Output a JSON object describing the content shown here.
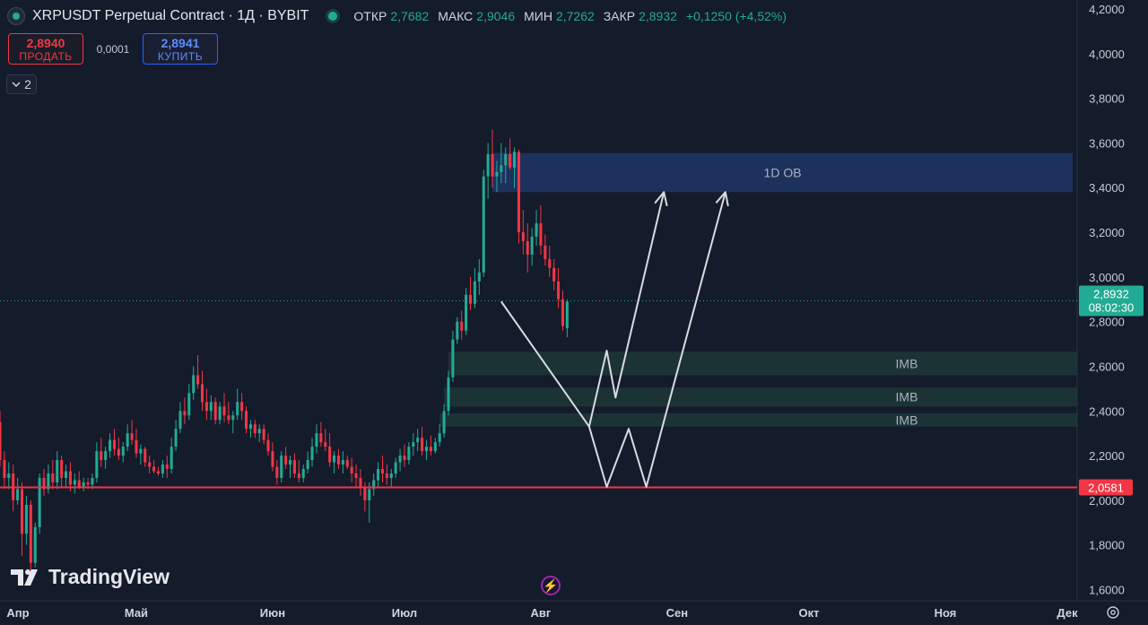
{
  "header": {
    "symbol": "XRPUSDT Perpetual Contract · 1Д · BYBIT",
    "ohlc": [
      {
        "key": "ОТКР",
        "value": "2,7682"
      },
      {
        "key": "МАКС",
        "value": "2,9046"
      },
      {
        "key": "МИН",
        "value": "2,7262"
      },
      {
        "key": "ЗАКР",
        "value": "2,8932"
      }
    ],
    "change": "+0,1250 (+4,52%)"
  },
  "trade": {
    "sell_price": "2,8940",
    "sell_label": "ПРОДАТЬ",
    "spread": "0,0001",
    "buy_price": "2,8941",
    "buy_label": "КУПИТЬ"
  },
  "indicators_toggle": "2",
  "branding": {
    "logo_text": "TradingView"
  },
  "colors": {
    "up": "#22ab94",
    "down": "#f23645",
    "background": "#141b2b",
    "ob_zone": "#1e3566",
    "imb_zone": "#1e3a3a",
    "support_line": "#f23645",
    "price_tag": "#22ab94",
    "drawing": "#d9dbe0"
  },
  "chart_data": {
    "type": "candlestick",
    "xlim": [
      "2025-03-31",
      "2025-12-01"
    ],
    "ylim": [
      1.55,
      4.24
    ],
    "y_ticks": [
      "4,2000",
      "4,0000",
      "3,8000",
      "3,6000",
      "3,4000",
      "3,2000",
      "3,0000",
      "2,8000",
      "2,6000",
      "2,4000",
      "2,2000",
      "2,0000",
      "1,8000",
      "1,6000"
    ],
    "x_ticks": [
      {
        "date": "2025-04-01",
        "label": "Апр"
      },
      {
        "date": "2025-05-01",
        "label": "Май"
      },
      {
        "date": "2025-06-01",
        "label": "Июн"
      },
      {
        "date": "2025-07-01",
        "label": "Июл"
      },
      {
        "date": "2025-08-01",
        "label": "Авг"
      },
      {
        "date": "2025-09-01",
        "label": "Сен"
      },
      {
        "date": "2025-10-01",
        "label": "Окт"
      },
      {
        "date": "2025-11-01",
        "label": "Ноя"
      },
      {
        "date": "2025-12-01",
        "label": "Дек"
      }
    ],
    "last_price": {
      "value": 2.8932,
      "label": "2,8932",
      "countdown": "08:02:30"
    },
    "support": {
      "value": 2.0581,
      "label": "2,0581"
    },
    "zones": [
      {
        "label": "1D OB",
        "kind": "order-block",
        "from": "2025-07-21",
        "to": "2025-11-30",
        "top": 3.555,
        "bottom": 3.38
      },
      {
        "label": "IMB",
        "kind": "imbalance",
        "from": "2025-07-11",
        "to": "2025-12-01",
        "top": 2.665,
        "bottom": 2.56
      },
      {
        "label": "IMB",
        "kind": "imbalance",
        "from": "2025-07-10",
        "to": "2025-12-01",
        "top": 2.505,
        "bottom": 2.42
      },
      {
        "label": "IMB",
        "kind": "imbalance",
        "from": "2025-07-09",
        "to": "2025-12-01",
        "top": 2.39,
        "bottom": 2.33
      }
    ],
    "projections": [
      {
        "name": "path-a",
        "points": [
          [
            "2025-07-23",
            2.89
          ],
          [
            "2025-08-12",
            2.33
          ],
          [
            "2025-08-16",
            2.67
          ],
          [
            "2025-08-18",
            2.46
          ],
          [
            "2025-08-29",
            3.38
          ]
        ]
      },
      {
        "name": "path-b",
        "points": [
          [
            "2025-08-12",
            2.33
          ],
          [
            "2025-08-16",
            2.06
          ],
          [
            "2025-08-21",
            2.32
          ],
          [
            "2025-08-25",
            2.06
          ],
          [
            "2025-09-12",
            3.38
          ]
        ]
      }
    ],
    "candles_start": "2025-03-31",
    "candles": [
      [
        2.35,
        2.4,
        2.15,
        2.18
      ],
      [
        2.18,
        2.22,
        2.05,
        2.1
      ],
      [
        2.1,
        2.17,
        2.05,
        2.12
      ],
      [
        2.12,
        2.16,
        1.95,
        2.0
      ],
      [
        2.0,
        2.1,
        1.98,
        2.05
      ],
      [
        2.05,
        2.08,
        1.75,
        1.85
      ],
      [
        1.85,
        2.02,
        1.8,
        1.98
      ],
      [
        1.98,
        2.0,
        1.66,
        1.72
      ],
      [
        1.72,
        1.9,
        1.7,
        1.88
      ],
      [
        1.88,
        2.12,
        1.85,
        2.1
      ],
      [
        2.1,
        2.14,
        2.02,
        2.05
      ],
      [
        2.05,
        2.16,
        2.03,
        2.12
      ],
      [
        2.12,
        2.18,
        2.05,
        2.08
      ],
      [
        2.08,
        2.22,
        2.05,
        2.18
      ],
      [
        2.18,
        2.2,
        2.06,
        2.1
      ],
      [
        2.1,
        2.16,
        2.06,
        2.13
      ],
      [
        2.13,
        2.17,
        2.04,
        2.07
      ],
      [
        2.07,
        2.12,
        2.03,
        2.09
      ],
      [
        2.09,
        2.13,
        2.05,
        2.06
      ],
      [
        2.06,
        2.1,
        2.04,
        2.08
      ],
      [
        2.08,
        2.1,
        2.05,
        2.07
      ],
      [
        2.07,
        2.12,
        2.05,
        2.1
      ],
      [
        2.1,
        2.26,
        2.08,
        2.22
      ],
      [
        2.22,
        2.28,
        2.15,
        2.18
      ],
      [
        2.18,
        2.24,
        2.14,
        2.22
      ],
      [
        2.22,
        2.3,
        2.19,
        2.27
      ],
      [
        2.27,
        2.32,
        2.2,
        2.23
      ],
      [
        2.23,
        2.28,
        2.18,
        2.2
      ],
      [
        2.2,
        2.26,
        2.17,
        2.24
      ],
      [
        2.24,
        2.34,
        2.22,
        2.3
      ],
      [
        2.3,
        2.36,
        2.25,
        2.27
      ],
      [
        2.27,
        2.32,
        2.19,
        2.21
      ],
      [
        2.21,
        2.25,
        2.16,
        2.23
      ],
      [
        2.23,
        2.24,
        2.15,
        2.17
      ],
      [
        2.17,
        2.2,
        2.12,
        2.15
      ],
      [
        2.15,
        2.18,
        2.12,
        2.13
      ],
      [
        2.13,
        2.15,
        2.11,
        2.12
      ],
      [
        2.12,
        2.18,
        2.1,
        2.16
      ],
      [
        2.16,
        2.2,
        2.1,
        2.14
      ],
      [
        2.14,
        2.28,
        2.12,
        2.24
      ],
      [
        2.24,
        2.36,
        2.22,
        2.32
      ],
      [
        2.32,
        2.44,
        2.3,
        2.4
      ],
      [
        2.4,
        2.46,
        2.34,
        2.38
      ],
      [
        2.38,
        2.52,
        2.36,
        2.48
      ],
      [
        2.48,
        2.6,
        2.45,
        2.56
      ],
      [
        2.56,
        2.65,
        2.5,
        2.52
      ],
      [
        2.52,
        2.58,
        2.4,
        2.44
      ],
      [
        2.44,
        2.5,
        2.36,
        2.4
      ],
      [
        2.4,
        2.47,
        2.36,
        2.44
      ],
      [
        2.44,
        2.46,
        2.34,
        2.36
      ],
      [
        2.36,
        2.44,
        2.34,
        2.42
      ],
      [
        2.42,
        2.48,
        2.35,
        2.38
      ],
      [
        2.38,
        2.44,
        2.34,
        2.36
      ],
      [
        2.36,
        2.4,
        2.3,
        2.38
      ],
      [
        2.38,
        2.5,
        2.36,
        2.44
      ],
      [
        2.44,
        2.48,
        2.36,
        2.4
      ],
      [
        2.4,
        2.42,
        2.3,
        2.32
      ],
      [
        2.32,
        2.36,
        2.28,
        2.34
      ],
      [
        2.34,
        2.36,
        2.28,
        2.3
      ],
      [
        2.3,
        2.34,
        2.26,
        2.32
      ],
      [
        2.32,
        2.34,
        2.25,
        2.27
      ],
      [
        2.27,
        2.3,
        2.2,
        2.22
      ],
      [
        2.22,
        2.26,
        2.13,
        2.15
      ],
      [
        2.15,
        2.18,
        2.07,
        2.1
      ],
      [
        2.1,
        2.22,
        2.08,
        2.2
      ],
      [
        2.2,
        2.24,
        2.14,
        2.16
      ],
      [
        2.16,
        2.2,
        2.1,
        2.18
      ],
      [
        2.18,
        2.21,
        2.1,
        2.12
      ],
      [
        2.12,
        2.18,
        2.08,
        2.1
      ],
      [
        2.1,
        2.16,
        2.08,
        2.14
      ],
      [
        2.14,
        2.22,
        2.12,
        2.18
      ],
      [
        2.18,
        2.28,
        2.15,
        2.24
      ],
      [
        2.24,
        2.34,
        2.21,
        2.3
      ],
      [
        2.3,
        2.35,
        2.24,
        2.26
      ],
      [
        2.26,
        2.32,
        2.22,
        2.24
      ],
      [
        2.24,
        2.3,
        2.15,
        2.17
      ],
      [
        2.17,
        2.22,
        2.12,
        2.2
      ],
      [
        2.2,
        2.23,
        2.14,
        2.16
      ],
      [
        2.16,
        2.22,
        2.12,
        2.18
      ],
      [
        2.18,
        2.2,
        2.14,
        2.15
      ],
      [
        2.15,
        2.19,
        2.08,
        2.12
      ],
      [
        2.12,
        2.16,
        2.06,
        2.1
      ],
      [
        2.1,
        2.14,
        2.02,
        2.06
      ],
      [
        2.06,
        2.08,
        1.95,
        2.0
      ],
      [
        2.0,
        2.08,
        1.9,
        2.05
      ],
      [
        2.05,
        2.12,
        2.02,
        2.09
      ],
      [
        2.09,
        2.17,
        2.06,
        2.14
      ],
      [
        2.14,
        2.2,
        2.08,
        2.12
      ],
      [
        2.12,
        2.16,
        2.07,
        2.1
      ],
      [
        2.1,
        2.14,
        2.06,
        2.12
      ],
      [
        2.12,
        2.19,
        2.1,
        2.17
      ],
      [
        2.17,
        2.23,
        2.13,
        2.2
      ],
      [
        2.2,
        2.25,
        2.15,
        2.18
      ],
      [
        2.18,
        2.26,
        2.16,
        2.24
      ],
      [
        2.24,
        2.3,
        2.2,
        2.26
      ],
      [
        2.26,
        2.32,
        2.22,
        2.28
      ],
      [
        2.28,
        2.33,
        2.2,
        2.22
      ],
      [
        2.22,
        2.27,
        2.18,
        2.24
      ],
      [
        2.24,
        2.29,
        2.2,
        2.22
      ],
      [
        2.22,
        2.28,
        2.21,
        2.26
      ],
      [
        2.26,
        2.34,
        2.24,
        2.3
      ],
      [
        2.3,
        2.43,
        2.28,
        2.4
      ],
      [
        2.4,
        2.58,
        2.38,
        2.55
      ],
      [
        2.55,
        2.76,
        2.53,
        2.72
      ],
      [
        2.72,
        2.82,
        2.7,
        2.8
      ],
      [
        2.8,
        2.85,
        2.72,
        2.76
      ],
      [
        2.76,
        2.95,
        2.74,
        2.92
      ],
      [
        2.92,
        3.0,
        2.85,
        2.88
      ],
      [
        2.88,
        3.04,
        2.86,
        2.98
      ],
      [
        2.98,
        3.08,
        2.92,
        3.02
      ],
      [
        3.02,
        3.48,
        3.0,
        3.45
      ],
      [
        3.45,
        3.6,
        3.35,
        3.55
      ],
      [
        3.55,
        3.66,
        3.4,
        3.45
      ],
      [
        3.45,
        3.52,
        3.38,
        3.47
      ],
      [
        3.47,
        3.6,
        3.42,
        3.5
      ],
      [
        3.5,
        3.58,
        3.42,
        3.55
      ],
      [
        3.55,
        3.62,
        3.48,
        3.49
      ],
      [
        3.49,
        3.58,
        3.4,
        3.56
      ],
      [
        3.56,
        3.57,
        3.15,
        3.2
      ],
      [
        3.2,
        3.3,
        3.1,
        3.16
      ],
      [
        3.16,
        3.24,
        3.02,
        3.1
      ],
      [
        3.1,
        3.22,
        3.05,
        3.18
      ],
      [
        3.18,
        3.3,
        3.14,
        3.24
      ],
      [
        3.24,
        3.32,
        3.1,
        3.14
      ],
      [
        3.14,
        3.19,
        3.05,
        3.08
      ],
      [
        3.08,
        3.14,
        3.0,
        3.04
      ],
      [
        3.04,
        3.08,
        2.94,
        2.98
      ],
      [
        2.98,
        3.04,
        2.86,
        2.9
      ],
      [
        2.9,
        2.94,
        2.76,
        2.78
      ],
      [
        2.77,
        2.9,
        2.73,
        2.89
      ]
    ]
  }
}
